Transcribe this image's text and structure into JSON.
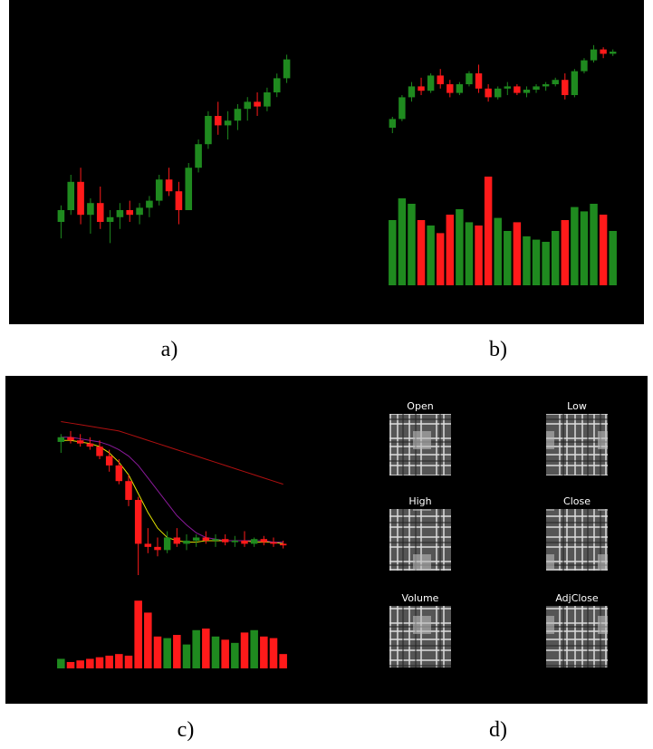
{
  "chart_data": [
    {
      "type": "candlestick",
      "label": "a)",
      "up_color": "#1f8a1f",
      "down_color": "#ff1a1a",
      "ylim": [
        0,
        100
      ],
      "open": [
        25,
        30,
        42,
        28,
        33,
        25,
        27,
        30,
        28,
        31,
        34,
        43,
        38,
        30,
        48,
        58,
        70,
        66,
        68,
        73,
        76,
        74,
        80,
        86
      ],
      "high": [
        32,
        45,
        48,
        35,
        40,
        30,
        33,
        34,
        33,
        36,
        45,
        48,
        42,
        50,
        60,
        72,
        76,
        72,
        75,
        78,
        80,
        82,
        88,
        96
      ],
      "low": [
        18,
        28,
        24,
        20,
        22,
        16,
        22,
        25,
        24,
        27,
        32,
        36,
        24,
        30,
        46,
        56,
        62,
        60,
        64,
        68,
        70,
        72,
        78,
        84
      ],
      "close": [
        30,
        42,
        28,
        33,
        25,
        27,
        30,
        28,
        31,
        34,
        43,
        38,
        30,
        48,
        58,
        70,
        66,
        68,
        73,
        76,
        74,
        80,
        86,
        94
      ]
    },
    {
      "type": "candlestick",
      "label": "b)",
      "up_color": "#1f8a1f",
      "down_color": "#ff1a1a",
      "ylim": [
        0,
        100
      ],
      "volume_ylim": [
        0,
        100
      ],
      "open": [
        20,
        28,
        48,
        58,
        54,
        68,
        60,
        52,
        60,
        70,
        56,
        48,
        56,
        58,
        52,
        55,
        58,
        60,
        64,
        50,
        72,
        82,
        92,
        88
      ],
      "high": [
        30,
        50,
        62,
        66,
        70,
        74,
        64,
        62,
        72,
        78,
        60,
        58,
        62,
        60,
        58,
        60,
        62,
        66,
        70,
        74,
        84,
        96,
        94,
        92
      ],
      "low": [
        15,
        26,
        44,
        50,
        52,
        56,
        48,
        50,
        58,
        52,
        44,
        46,
        50,
        50,
        48,
        52,
        54,
        58,
        46,
        48,
        70,
        80,
        84,
        86
      ],
      "close": [
        28,
        48,
        58,
        54,
        68,
        60,
        52,
        60,
        70,
        56,
        48,
        56,
        58,
        52,
        55,
        58,
        60,
        64,
        50,
        72,
        82,
        92,
        88,
        90
      ],
      "volume": [
        60,
        80,
        75,
        60,
        55,
        48,
        65,
        70,
        58,
        55,
        100,
        62,
        50,
        58,
        45,
        42,
        40,
        50,
        60,
        72,
        68,
        75,
        65,
        50
      ]
    },
    {
      "type": "candlestick",
      "label": "c)",
      "up_color": "#1f8a1f",
      "down_color": "#ff1a1a",
      "ylim": [
        0,
        100
      ],
      "volume_ylim": [
        0,
        100
      ],
      "open": [
        85,
        88,
        86,
        84,
        82,
        76,
        70,
        60,
        48,
        20,
        18,
        16,
        24,
        20,
        22,
        24,
        22,
        23,
        21,
        22,
        20,
        23,
        21,
        20
      ],
      "high": [
        90,
        92,
        90,
        88,
        86,
        80,
        74,
        64,
        50,
        30,
        24,
        28,
        30,
        26,
        26,
        28,
        26,
        26,
        25,
        28,
        24,
        25,
        24,
        22
      ],
      "low": [
        78,
        84,
        82,
        80,
        74,
        66,
        58,
        44,
        0,
        14,
        12,
        14,
        18,
        16,
        18,
        20,
        18,
        19,
        18,
        18,
        18,
        19,
        18,
        17
      ],
      "close": [
        88,
        86,
        84,
        82,
        76,
        70,
        60,
        48,
        20,
        18,
        16,
        24,
        20,
        22,
        24,
        22,
        23,
        21,
        22,
        20,
        23,
        21,
        20,
        19
      ],
      "volume": [
        12,
        8,
        10,
        12,
        14,
        16,
        18,
        16,
        85,
        70,
        40,
        38,
        42,
        30,
        48,
        50,
        40,
        36,
        32,
        45,
        48,
        40,
        38,
        18
      ],
      "lines": [
        {
          "color": "#e6e600",
          "values": [
            86,
            86,
            85,
            84,
            82,
            78,
            72,
            64,
            52,
            40,
            30,
            24,
            22,
            21,
            21,
            22,
            22,
            22,
            22,
            22,
            21,
            21,
            21,
            20
          ]
        },
        {
          "color": "#8a1a9a",
          "values": [
            88,
            88,
            87,
            86,
            85,
            83,
            80,
            76,
            70,
            62,
            54,
            46,
            38,
            32,
            27,
            24,
            23,
            22,
            22,
            22,
            22,
            22,
            21,
            21
          ]
        },
        {
          "color": "#b01010",
          "values": [
            98,
            97,
            96,
            95,
            94,
            93,
            92,
            90,
            88,
            86,
            84,
            82,
            80,
            78,
            76,
            74,
            72,
            70,
            68,
            66,
            64,
            62,
            60,
            58
          ]
        }
      ]
    },
    {
      "type": "heatmap",
      "label": "d)",
      "titles": [
        "Open",
        "Low",
        "High",
        "Close",
        "Volume",
        "AdjClose"
      ]
    }
  ]
}
